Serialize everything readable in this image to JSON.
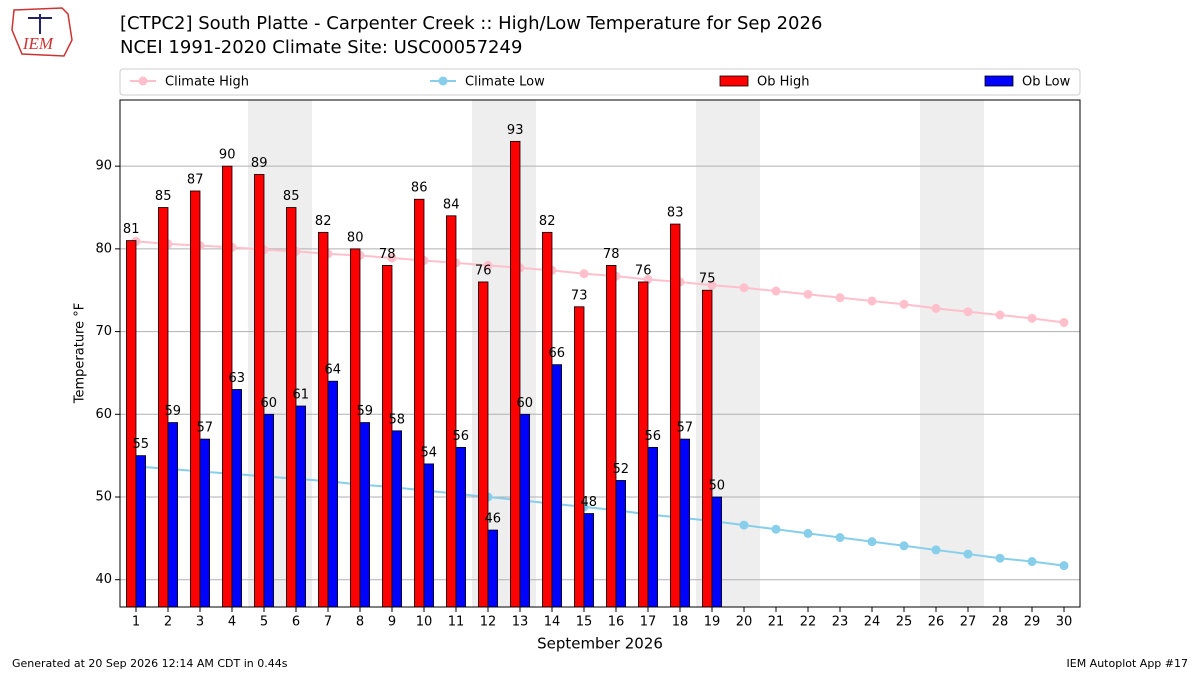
{
  "chart_data": {
    "type": "bar",
    "title": "[CTPC2] South Platte - Carpenter Creek :: High/Low Temperature for Sep 2026",
    "subtitle": "NCEI 1991-2020 Climate Site: USC00057249",
    "x_label": "September 2026",
    "y_label": "Temperature °F",
    "categories": [
      "1",
      "2",
      "3",
      "4",
      "5",
      "6",
      "7",
      "8",
      "9",
      "10",
      "11",
      "12",
      "13",
      "14",
      "15",
      "16",
      "17",
      "18",
      "19",
      "20",
      "21",
      "22",
      "23",
      "24",
      "25",
      "26",
      "27",
      "28",
      "29",
      "30"
    ],
    "series": [
      {
        "name": "Climate High",
        "kind": "line",
        "color": "#ffc0cb",
        "values": [
          80.9,
          80.6,
          80.4,
          80.2,
          79.9,
          79.7,
          79.4,
          79.2,
          78.9,
          78.6,
          78.3,
          78.0,
          77.7,
          77.4,
          77.0,
          76.7,
          76.3,
          76.0,
          75.6,
          75.3,
          74.9,
          74.5,
          74.1,
          73.7,
          73.3,
          72.8,
          72.4,
          72.0,
          71.6,
          71.1
        ]
      },
      {
        "name": "Climate Low",
        "kind": "line",
        "color": "#87ceeb",
        "values": [
          53.7,
          53.4,
          53.1,
          52.8,
          52.5,
          52.2,
          51.9,
          51.5,
          51.2,
          50.8,
          50.4,
          50.0,
          49.6,
          49.2,
          48.8,
          48.4,
          47.9,
          47.5,
          47.1,
          46.6,
          46.1,
          45.6,
          45.1,
          44.6,
          44.1,
          43.6,
          43.1,
          42.6,
          42.2,
          41.7
        ]
      },
      {
        "name": "Ob High",
        "kind": "bar",
        "color": "#ff0000",
        "values": [
          81,
          85,
          87,
          90,
          89,
          85,
          82,
          80,
          78,
          86,
          84,
          76,
          93,
          82,
          73,
          78,
          76,
          83,
          75,
          null,
          null,
          null,
          null,
          null,
          null,
          null,
          null,
          null,
          null,
          null
        ]
      },
      {
        "name": "Ob Low",
        "kind": "bar",
        "color": "#0000ff",
        "values": [
          55,
          59,
          57,
          63,
          60,
          61,
          64,
          59,
          58,
          54,
          56,
          46,
          60,
          66,
          48,
          52,
          56,
          57,
          50,
          null,
          null,
          null,
          null,
          null,
          null,
          null,
          null,
          null,
          null,
          null
        ]
      }
    ],
    "shaded_days": [
      [
        5,
        6
      ],
      [
        12,
        13
      ],
      [
        19,
        20
      ],
      [
        26,
        27
      ]
    ],
    "ylim": [
      36.7,
      98
    ],
    "yticks": [
      40,
      50,
      60,
      70,
      80,
      90
    ],
    "grid": true
  },
  "logo": "IEM",
  "footer": {
    "left": "Generated at 20 Sep 2026 12:14 AM CDT in 0.44s",
    "right": "IEM Autoplot App #17"
  }
}
